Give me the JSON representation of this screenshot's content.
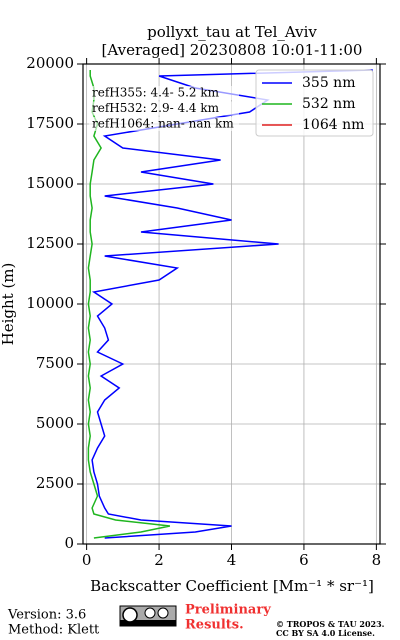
{
  "chart_data": {
    "type": "line",
    "title": [
      "pollyxt_tau at Tel_Aviv",
      "[Averaged] 20230808 10:01-11:00"
    ],
    "xlabel": "Backscatter Coefficient [Mm⁻¹ * sr⁻¹]",
    "ylabel": "Height (m)",
    "y": [
      250,
      500,
      750,
      1000,
      1250,
      1500,
      2000,
      2500,
      3000,
      3500,
      4000,
      4500,
      5000,
      5500,
      6000,
      6500,
      7000,
      7500,
      8000,
      8500,
      9000,
      9500,
      10000,
      10500,
      11000,
      11500,
      12000,
      12500,
      13000,
      13500,
      14000,
      14500,
      15000,
      15500,
      16000,
      16500,
      17000,
      17500,
      18000,
      18500,
      19000,
      19500,
      19750
    ],
    "series": [
      {
        "name": "355 nm",
        "color": "#0000ff",
        "values": [
          0.5,
          3.0,
          4.0,
          1.5,
          0.6,
          0.5,
          0.35,
          0.3,
          0.2,
          0.15,
          0.3,
          0.5,
          0.4,
          0.3,
          0.5,
          0.9,
          0.4,
          1.0,
          0.3,
          0.6,
          0.5,
          0.3,
          0.7,
          0.2,
          2.0,
          2.5,
          0.5,
          5.3,
          1.5,
          4.0,
          2.5,
          0.5,
          3.5,
          1.5,
          3.7,
          1.0,
          0.5,
          2.5,
          4.5,
          5.0,
          3.0,
          2.0,
          7.9
        ]
      },
      {
        "name": "532 nm",
        "color": "#1fb51f",
        "values": [
          0.2,
          1.5,
          2.3,
          0.8,
          0.2,
          0.15,
          0.3,
          0.2,
          0.1,
          0.05,
          0.05,
          0.1,
          0.05,
          0.1,
          0.05,
          0.1,
          0.05,
          0.1,
          0.05,
          0.1,
          0.05,
          0.1,
          0.05,
          0.1,
          0.1,
          0.05,
          0.1,
          0.15,
          0.1,
          0.1,
          0.15,
          0.1,
          0.1,
          0.15,
          0.2,
          0.4,
          0.2,
          0.3,
          0.15,
          0.2,
          0.2,
          0.1,
          0.1
        ]
      },
      {
        "name": "1064 nm",
        "color": "#e02020",
        "values": [
          null,
          null,
          null,
          null,
          null,
          null,
          null,
          null,
          null,
          null,
          null,
          null,
          null,
          null,
          null,
          null,
          null,
          null,
          null,
          null,
          null,
          null,
          null,
          null,
          null,
          null,
          null,
          null,
          null,
          null,
          null,
          null,
          null,
          null,
          null,
          null,
          null,
          null,
          null,
          null,
          null,
          null,
          null
        ]
      }
    ],
    "annotations": [
      "refH355: 4.4- 5.2 km",
      "refH532: 2.9- 4.4 km",
      "refH1064: nan- nan km"
    ],
    "xlim": [
      -0.1,
      8.1
    ],
    "xticks": [
      0,
      2,
      4,
      6,
      8
    ],
    "ylim": [
      0,
      20000
    ],
    "yticks": [
      0,
      2500,
      5000,
      7500,
      10000,
      12500,
      15000,
      17500,
      20000
    ],
    "grid": true,
    "legend": "upper right"
  },
  "footer": {
    "version": "Version: 3.6",
    "method": "Method: Klett",
    "preliminary": [
      "Preliminary",
      "Results."
    ],
    "copyright": [
      "© TROPOS & TAU 2023.",
      "CC BY SA 4.0 License."
    ]
  }
}
